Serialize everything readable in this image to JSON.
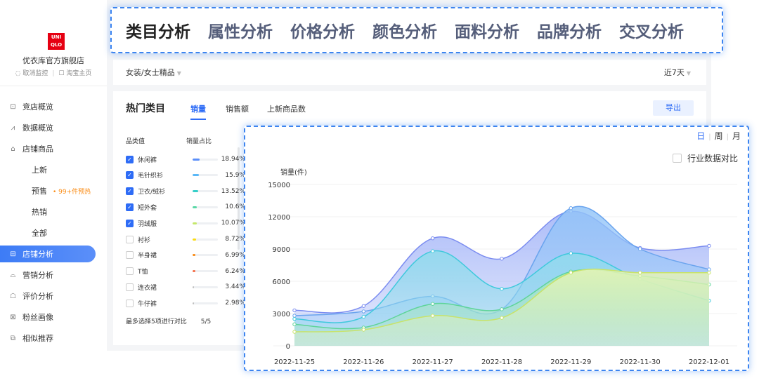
{
  "brand": {
    "logo_line1": "UNI",
    "logo_line2": "QLO",
    "shop_name": "优衣库官方旗舰店",
    "cancel_monitor": "取消监控",
    "taobao_home": "淘宝主页"
  },
  "nav": [
    {
      "label": "竞店概览",
      "icon": "monitor-icon",
      "glyph": "⊡"
    },
    {
      "label": "数据概览",
      "icon": "line-chart-icon",
      "glyph": "⩘"
    },
    {
      "label": "店铺商品",
      "icon": "bag-icon",
      "glyph": "⌂"
    },
    {
      "label": "上新",
      "sub": true
    },
    {
      "label": "预售",
      "sub": true,
      "badge": "• 99+件预热"
    },
    {
      "label": "热销",
      "sub": true
    },
    {
      "label": "全部",
      "sub": true
    },
    {
      "label": "店铺分析",
      "icon": "store-icon",
      "glyph": "⊟",
      "active": true
    },
    {
      "label": "营销分析",
      "icon": "gift-icon",
      "glyph": "⌓"
    },
    {
      "label": "评价分析",
      "icon": "comment-icon",
      "glyph": "☖"
    },
    {
      "label": "粉丝画像",
      "icon": "fans-icon",
      "glyph": "⊠"
    },
    {
      "label": "相似推荐",
      "icon": "copy-icon",
      "glyph": "⧉"
    }
  ],
  "top_tabs": [
    "类目分析",
    "属性分析",
    "价格分析",
    "颜色分析",
    "面料分析",
    "品牌分析",
    "交叉分析"
  ],
  "filter": {
    "category": "女装/女士精品",
    "period": "近7天"
  },
  "panel": {
    "title": "热门类目",
    "tabs": [
      "销量",
      "销售额",
      "上新商品数"
    ],
    "export": "导出",
    "col_category": "品类值",
    "col_share": "销量占比",
    "max_note": "最多选择5项进行对比",
    "selected_count": "5/5"
  },
  "categories": [
    {
      "name": "休闲裤",
      "pct": "18.94%",
      "share": 18.94,
      "checked": true,
      "color": "#5b8ff9"
    },
    {
      "name": "毛针织衫",
      "pct": "15.9%",
      "share": 15.9,
      "checked": true,
      "color": "#5ab8f7"
    },
    {
      "name": "卫衣/绒衫",
      "pct": "13.52%",
      "share": 13.52,
      "checked": true,
      "color": "#36cfc9"
    },
    {
      "name": "短外套",
      "pct": "10.6%",
      "share": 10.6,
      "checked": true,
      "color": "#5ad8a6"
    },
    {
      "name": "羽绒服",
      "pct": "10.07%",
      "share": 10.07,
      "checked": true,
      "color": "#c5e86b"
    },
    {
      "name": "衬衫",
      "pct": "8.72%",
      "share": 8.72,
      "checked": false,
      "color": "#fadb14"
    },
    {
      "name": "半身裙",
      "pct": "6.99%",
      "share": 6.99,
      "checked": false,
      "color": "#fa8c16"
    },
    {
      "name": "T恤",
      "pct": "6.24%",
      "share": 6.24,
      "checked": false,
      "color": "#f5704b"
    },
    {
      "name": "连衣裙",
      "pct": "3.44%",
      "share": 3.44,
      "checked": false,
      "color": "#bfbfbf"
    },
    {
      "name": "牛仔裤",
      "pct": "2.98%",
      "share": 2.98,
      "checked": false,
      "color": "#bfbfbf"
    }
  ],
  "chart_options": {
    "period_day": "日",
    "period_week": "周",
    "period_month": "月",
    "compare_label": "行业数据对比"
  },
  "chart_data": {
    "type": "area",
    "ylabel": "销量(件)",
    "x": [
      "2022-11-25",
      "2022-11-26",
      "2022-11-27",
      "2022-11-28",
      "2022-11-29",
      "2022-11-30",
      "2022-12-01"
    ],
    "ylim": [
      0,
      15000
    ],
    "yticks": [
      0,
      3000,
      6000,
      9000,
      12000,
      15000
    ],
    "series": [
      {
        "values": [
          3300,
          3700,
          10000,
          8100,
          12500,
          9100,
          9300
        ],
        "color": "#7b8cf0",
        "fill": "#9fb1f7"
      },
      {
        "values": [
          2800,
          3200,
          4600,
          3400,
          12800,
          9000,
          7100
        ],
        "color": "#6aa4ee",
        "fill": "#92c4f8"
      },
      {
        "values": [
          2500,
          2700,
          8800,
          5300,
          8600,
          6200,
          4200
        ],
        "color": "#3fc9dc",
        "fill": "#8fdcec"
      },
      {
        "values": [
          2000,
          1700,
          3900,
          3400,
          6900,
          6500,
          5700
        ],
        "color": "#5ed49a",
        "fill": "#a6e8bf"
      },
      {
        "values": [
          1300,
          1500,
          2800,
          2600,
          6800,
          6800,
          6800
        ],
        "color": "#c8e36a",
        "fill": "#e7f4b4"
      }
    ],
    "grid": true,
    "legend": "none"
  }
}
